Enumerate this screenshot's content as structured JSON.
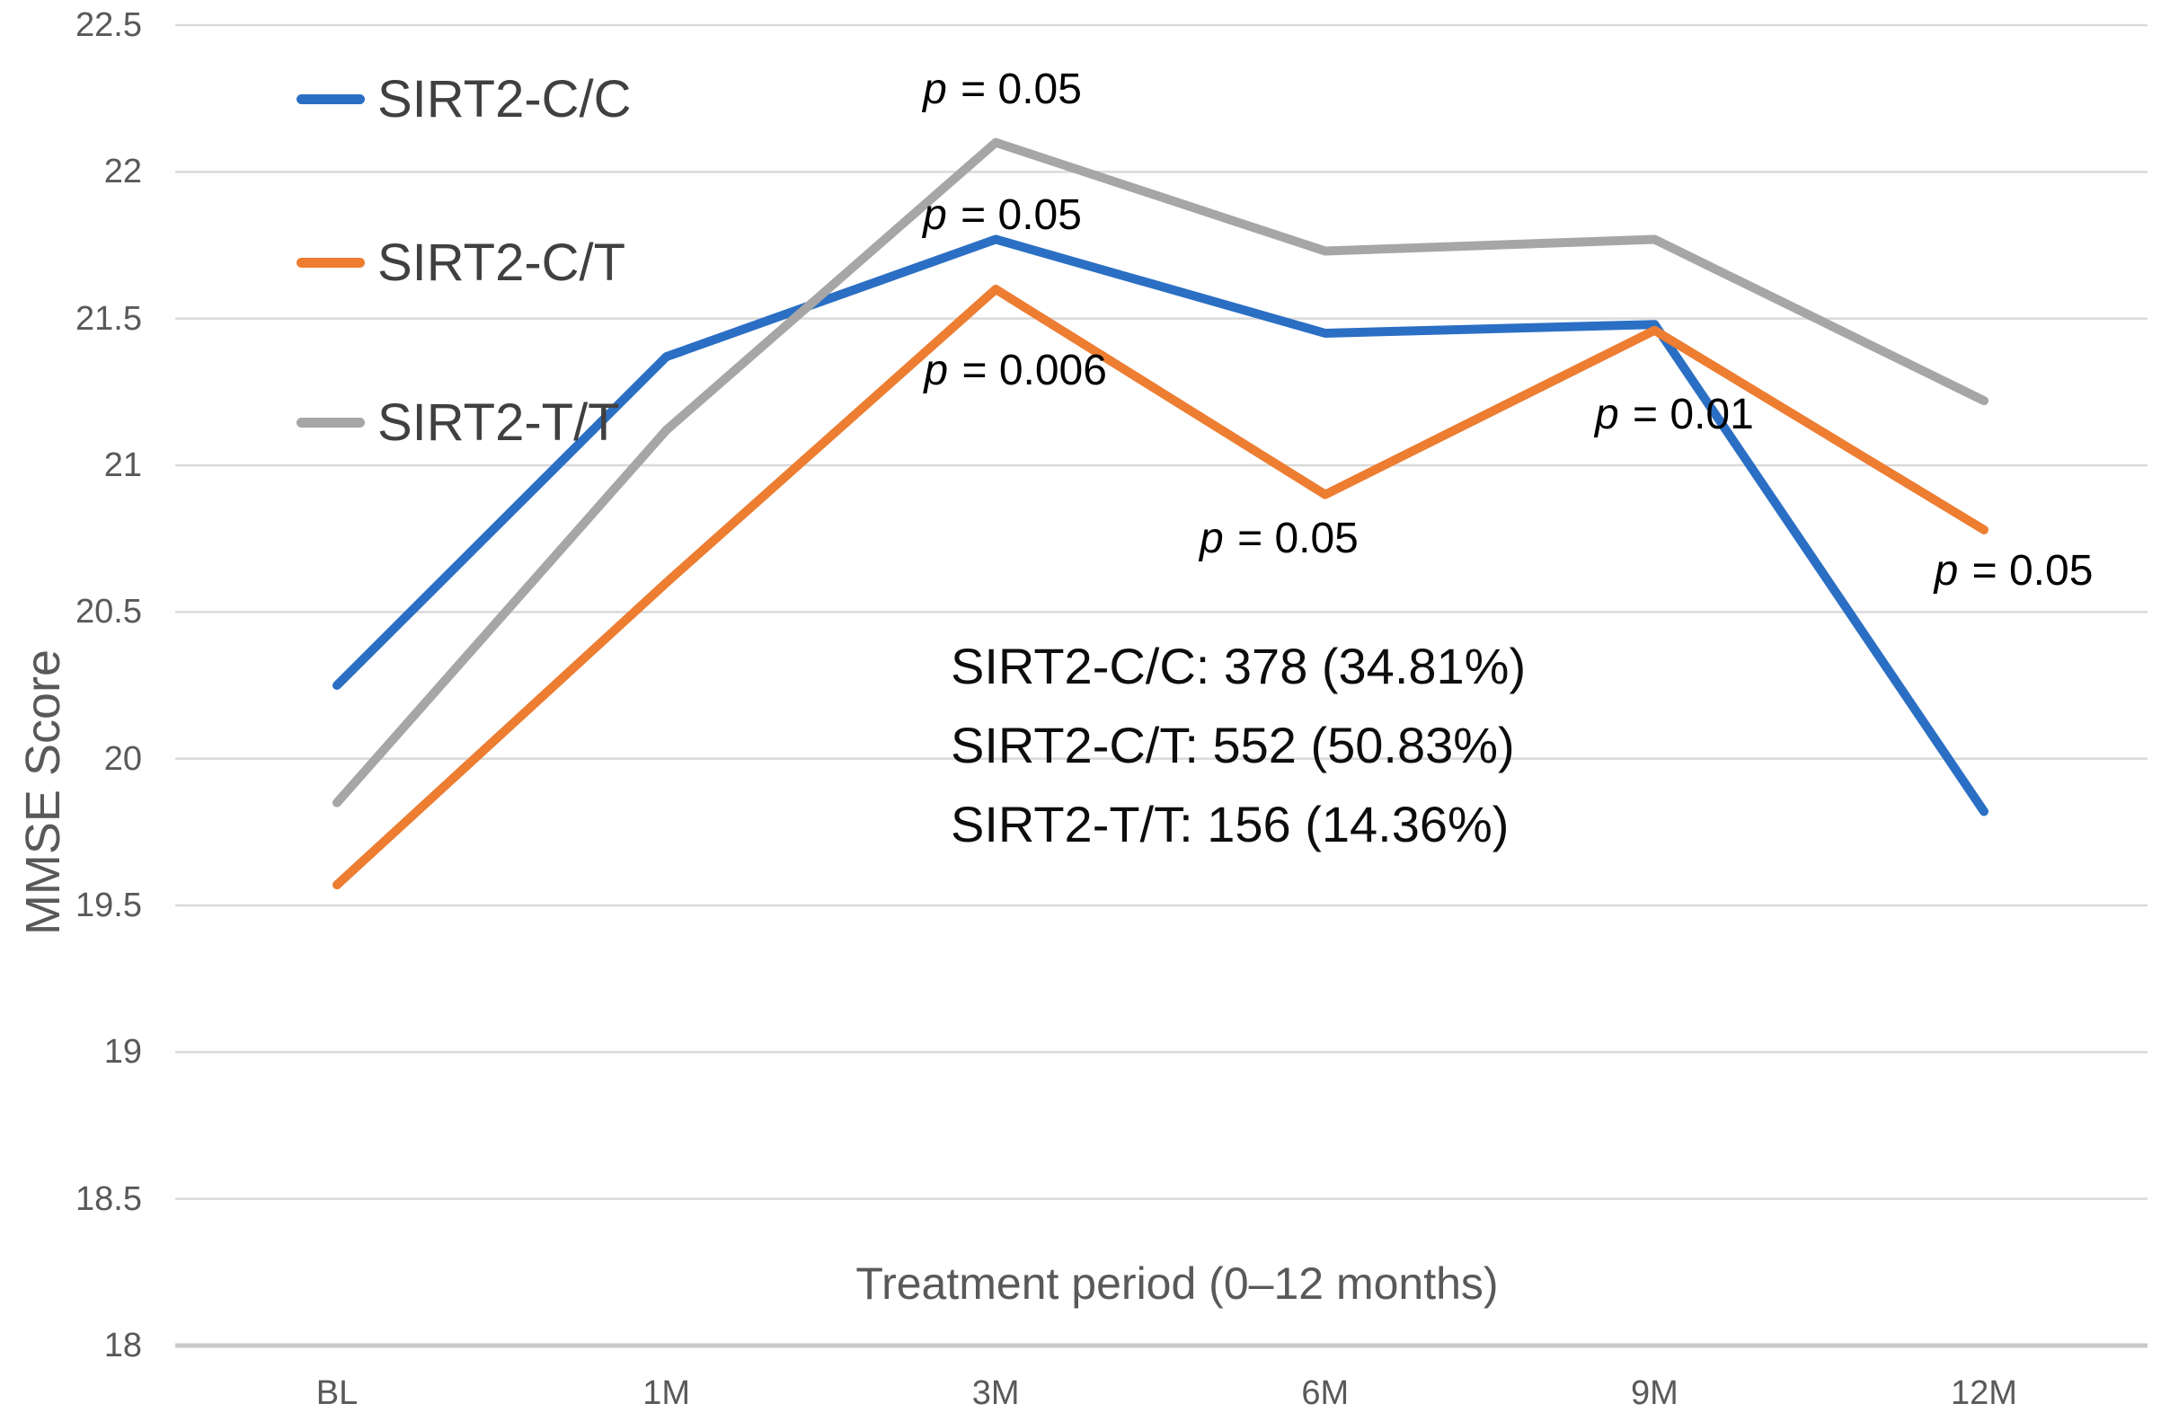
{
  "chart_data": {
    "type": "line",
    "title": "",
    "xlabel": "Treatment period (0–12 months)",
    "ylabel": "MMSE Score",
    "categories": [
      "BL",
      "1M",
      "3M",
      "6M",
      "9M",
      "12M"
    ],
    "series": [
      {
        "name": "SIRT2-C/C",
        "color": "#2B6FC4",
        "values": [
          20.25,
          21.37,
          21.77,
          21.45,
          21.48,
          19.82
        ]
      },
      {
        "name": "SIRT2-C/T",
        "color": "#ED7D31",
        "values": [
          19.57,
          20.6,
          21.6,
          20.9,
          21.46,
          20.78
        ]
      },
      {
        "name": "SIRT2-T/T",
        "color": "#A6A6A6",
        "values": [
          19.85,
          21.12,
          22.1,
          21.73,
          21.77,
          21.22
        ]
      }
    ],
    "ylim": [
      18,
      22.5
    ],
    "ytick_step": 0.5,
    "y_ticks": [
      "22.5",
      "22",
      "21.5",
      "21",
      "20.5",
      "20",
      "19.5",
      "19",
      "18.5",
      "18"
    ],
    "grid": "horizontal",
    "legend_position": "top-left",
    "annotations": [
      {
        "text": "p = 0.05",
        "x": 2.02,
        "y": 22.28
      },
      {
        "text": "p = 0.05",
        "x": 2.02,
        "y": 21.85
      },
      {
        "text": "p = 0.006",
        "x": 2.06,
        "y": 21.32
      },
      {
        "text": "p = 0.05",
        "x": 2.86,
        "y": 20.75
      },
      {
        "text": "p = 0.01",
        "x": 4.06,
        "y": 21.17
      },
      {
        "text": "p = 0.05",
        "x": 5.09,
        "y": 20.64
      }
    ],
    "inline_stats": [
      "SIRT2-C/C: 378 (34.81%)",
      "SIRT2-C/T: 552 (50.83%)",
      "SIRT2-T/T: 156 (14.36%)"
    ]
  },
  "colors": {
    "gridline": "#D9D9D9",
    "axis_line": "#C9C9C9",
    "tick_text": "#595959",
    "legend_text": "#404040",
    "annotation_text": "#000000"
  }
}
